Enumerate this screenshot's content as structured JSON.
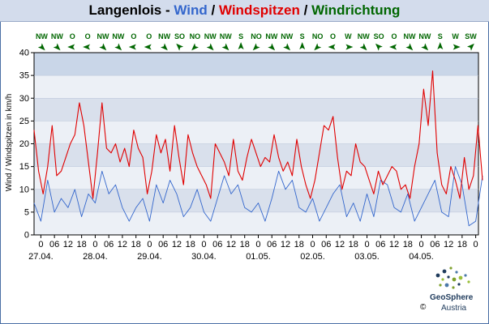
{
  "header": {
    "location": "Langenlois",
    "dash": " - ",
    "wind": "Wind",
    "slash1": " / ",
    "gusts": "Windspitzen",
    "slash2": " / ",
    "direction": "Windrichtung"
  },
  "colors": {
    "wind": "#3366cc",
    "gusts": "#e00000",
    "direction": "#006600",
    "band_a": "#d9e0ec",
    "band_b": "#ecf0f6",
    "band_c": "#c9d6e8"
  },
  "logo": {
    "name": "GeoSphere",
    "sub": "Austria",
    "copyright": "©"
  },
  "chart_data": {
    "type": "line",
    "title": "Langenlois - Wind / Windspitzen / Windrichtung",
    "ylabel": "Wind / Windspitzen in km/h",
    "ylim": [
      0,
      40
    ],
    "yticks": [
      0,
      5,
      10,
      15,
      20,
      25,
      30,
      35,
      40
    ],
    "x_unit": "hours from 26.04. 21:00",
    "xlim": [
      0,
      195
    ],
    "hour_ticks": [
      {
        "x": 3,
        "label": "0"
      },
      {
        "x": 9,
        "label": "06"
      },
      {
        "x": 15,
        "label": "12"
      },
      {
        "x": 21,
        "label": "18"
      },
      {
        "x": 27,
        "label": "0"
      },
      {
        "x": 33,
        "label": "06"
      },
      {
        "x": 39,
        "label": "12"
      },
      {
        "x": 45,
        "label": "18"
      },
      {
        "x": 51,
        "label": "0"
      },
      {
        "x": 57,
        "label": "06"
      },
      {
        "x": 63,
        "label": "12"
      },
      {
        "x": 69,
        "label": "18"
      },
      {
        "x": 75,
        "label": "0"
      },
      {
        "x": 81,
        "label": "06"
      },
      {
        "x": 87,
        "label": "12"
      },
      {
        "x": 93,
        "label": "18"
      },
      {
        "x": 99,
        "label": "0"
      },
      {
        "x": 105,
        "label": "06"
      },
      {
        "x": 111,
        "label": "12"
      },
      {
        "x": 117,
        "label": "18"
      },
      {
        "x": 123,
        "label": "0"
      },
      {
        "x": 129,
        "label": "06"
      },
      {
        "x": 135,
        "label": "12"
      },
      {
        "x": 141,
        "label": "18"
      },
      {
        "x": 147,
        "label": "0"
      },
      {
        "x": 153,
        "label": "06"
      },
      {
        "x": 159,
        "label": "12"
      },
      {
        "x": 165,
        "label": "18"
      },
      {
        "x": 171,
        "label": "0"
      },
      {
        "x": 177,
        "label": "06"
      },
      {
        "x": 183,
        "label": "12"
      },
      {
        "x": 189,
        "label": "18"
      },
      {
        "x": 195,
        "label": "0"
      },
      {
        "x": 201,
        "label": "06"
      }
    ],
    "date_labels": [
      {
        "x": 3,
        "label": "27.04."
      },
      {
        "x": 27,
        "label": "28.04."
      },
      {
        "x": 51,
        "label": "29.04."
      },
      {
        "x": 75,
        "label": "30.04."
      },
      {
        "x": 99,
        "label": "01.05."
      },
      {
        "x": 123,
        "label": "02.05."
      },
      {
        "x": 147,
        "label": "03.05."
      },
      {
        "x": 171,
        "label": "04.05."
      }
    ],
    "directions": [
      "NW",
      "NW",
      "O",
      "O",
      "NW",
      "NW",
      "O",
      "O",
      "NW",
      "SO",
      "NO",
      "NW",
      "NW",
      "S",
      "NO",
      "NW",
      "NW",
      "S",
      "NO",
      "O",
      "W",
      "NW",
      "SO",
      "O",
      "NW",
      "NW",
      "S",
      "W",
      "SW"
    ],
    "series": [
      {
        "name": "Wind",
        "x": [
          0,
          3,
          6,
          9,
          12,
          15,
          18,
          21,
          24,
          27,
          30,
          33,
          36,
          39,
          42,
          45,
          48,
          51,
          54,
          57,
          60,
          63,
          66,
          69,
          72,
          75,
          78,
          81,
          84,
          87,
          90,
          93,
          96,
          99,
          102,
          105,
          108,
          111,
          114,
          117,
          120,
          123,
          126,
          129,
          132,
          135,
          138,
          141,
          144,
          147,
          150,
          153,
          156,
          159,
          162,
          165,
          168,
          171,
          174,
          177,
          180,
          183,
          186,
          189,
          192,
          195,
          198
        ],
        "values": [
          7,
          3,
          12,
          5,
          8,
          6,
          10,
          4,
          9,
          7,
          14,
          9,
          11,
          6,
          3,
          6,
          8,
          3,
          11,
          7,
          12,
          9,
          4,
          6,
          10,
          5,
          3,
          8,
          13,
          9,
          11,
          6,
          5,
          7,
          3,
          8,
          14,
          10,
          12,
          6,
          5,
          8,
          3,
          6,
          9,
          11,
          4,
          7,
          3,
          9,
          4,
          12,
          11,
          6,
          5,
          9,
          3,
          6,
          9,
          12,
          5,
          4,
          15,
          11,
          2,
          3,
          13
        ]
      },
      {
        "name": "Windspitzen",
        "x": [
          0,
          2,
          4,
          6,
          8,
          10,
          12,
          14,
          16,
          18,
          20,
          22,
          24,
          26,
          28,
          30,
          32,
          34,
          36,
          38,
          40,
          42,
          44,
          46,
          48,
          50,
          52,
          54,
          56,
          58,
          60,
          62,
          64,
          66,
          68,
          70,
          72,
          74,
          76,
          78,
          80,
          82,
          84,
          86,
          88,
          90,
          92,
          94,
          96,
          98,
          100,
          102,
          104,
          106,
          108,
          110,
          112,
          114,
          116,
          118,
          120,
          122,
          124,
          126,
          128,
          130,
          132,
          134,
          136,
          138,
          140,
          142,
          144,
          146,
          148,
          150,
          152,
          154,
          156,
          158,
          160,
          162,
          164,
          166,
          168,
          170,
          172,
          174,
          176,
          178,
          180,
          182,
          184,
          186,
          188,
          190,
          192,
          194,
          196,
          198
        ],
        "values": [
          23,
          14,
          9,
          15,
          24,
          13,
          14,
          17,
          20,
          22,
          29,
          24,
          16,
          8,
          18,
          29,
          19,
          18,
          20,
          16,
          19,
          15,
          23,
          19,
          17,
          9,
          14,
          22,
          18,
          21,
          14,
          24,
          17,
          11,
          22,
          18,
          15,
          13,
          11,
          8,
          20,
          18,
          16,
          13,
          21,
          14,
          12,
          17,
          21,
          18,
          15,
          17,
          16,
          22,
          17,
          14,
          16,
          13,
          21,
          15,
          11,
          8,
          12,
          18,
          24,
          23,
          26,
          17,
          10,
          14,
          13,
          20,
          16,
          15,
          12,
          9,
          14,
          11,
          13,
          15,
          14,
          10,
          11,
          8,
          15,
          20,
          32,
          24,
          36,
          18,
          11,
          9,
          15,
          12,
          8,
          17,
          10,
          13,
          24,
          12
        ]
      }
    ]
  }
}
